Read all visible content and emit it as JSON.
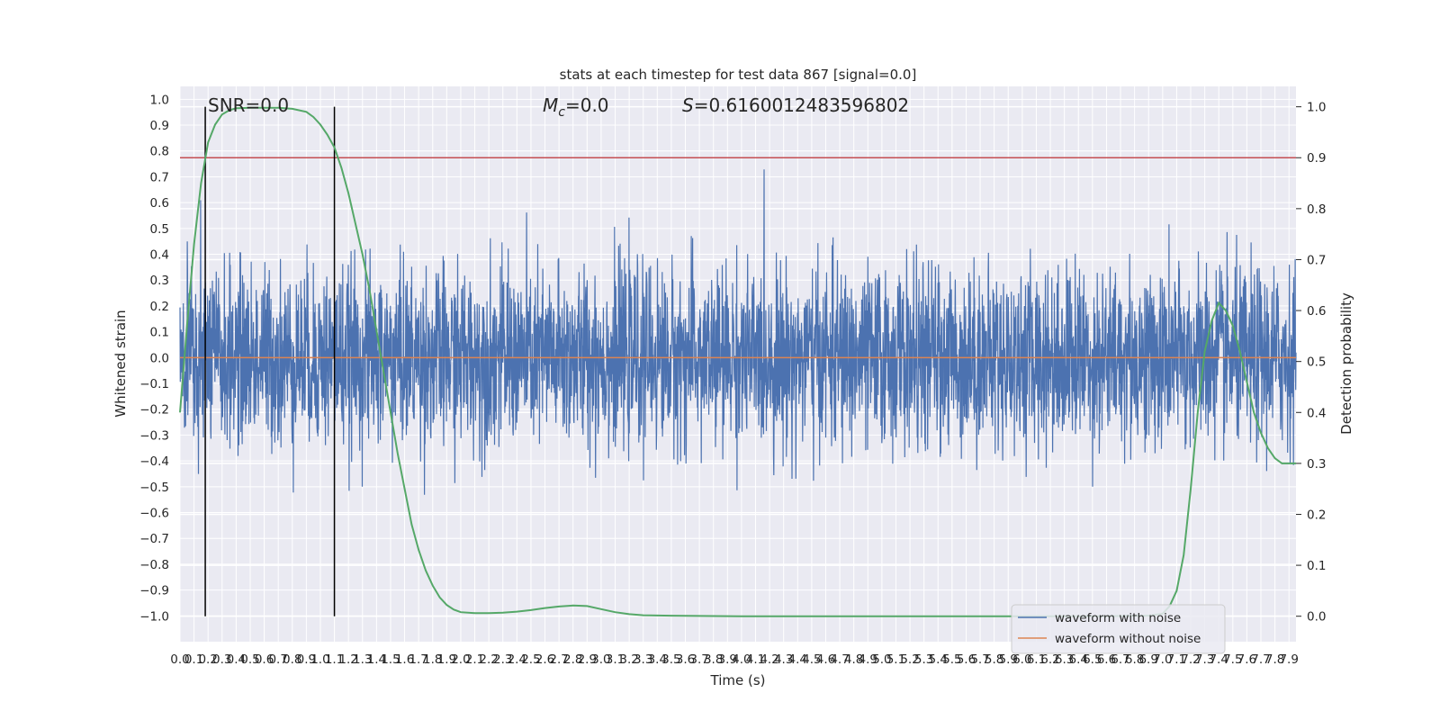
{
  "chart_data": {
    "type": "line",
    "title": "stats at each timestep for test data 867 [signal=0.0]",
    "xlabel": "Time (s)",
    "ylabel": "Whitened strain",
    "y2label": "Detection probability",
    "xlim": [
      0.0,
      7.95
    ],
    "ylim": [
      -1.1,
      1.05
    ],
    "y2lim": [
      -0.05,
      1.04
    ],
    "x_ticks": [
      "0.0",
      "0.1",
      "0.2",
      "0.3",
      "0.4",
      "0.5",
      "0.6",
      "0.7",
      "0.8",
      "0.9",
      "1.0",
      "1.1",
      "1.2",
      "1.3",
      "1.4",
      "1.5",
      "1.6",
      "1.7",
      "1.8",
      "1.9",
      "2.0",
      "2.1",
      "2.2",
      "2.3",
      "2.4",
      "2.5",
      "2.6",
      "2.7",
      "2.8",
      "2.9",
      "3.0",
      "3.1",
      "3.2",
      "3.3",
      "3.4",
      "3.5",
      "3.6",
      "3.7",
      "3.8",
      "3.9",
      "4.0",
      "4.1",
      "4.2",
      "4.3",
      "4.4",
      "4.5",
      "4.6",
      "4.7",
      "4.8",
      "4.9",
      "5.0",
      "5.1",
      "5.2",
      "5.3",
      "5.4",
      "5.5",
      "5.6",
      "5.7",
      "5.8",
      "5.9",
      "6.0",
      "6.1",
      "6.2",
      "6.3",
      "6.4",
      "6.5",
      "6.6",
      "6.7",
      "6.8",
      "6.9",
      "7.0",
      "7.1",
      "7.2",
      "7.3",
      "7.4",
      "7.5",
      "7.6",
      "7.7",
      "7.8",
      "7.9"
    ],
    "y_ticks": [
      "1.0",
      "0.9",
      "0.8",
      "0.7",
      "0.6",
      "0.5",
      "0.4",
      "0.3",
      "0.2",
      "0.1",
      "0.0",
      "−0.1",
      "−0.2",
      "−0.3",
      "−0.4",
      "−0.5",
      "−0.6",
      "−0.7",
      "−0.8",
      "−0.9",
      "−1.0"
    ],
    "y2_ticks": [
      "1.0",
      "0.9",
      "0.8",
      "0.7",
      "0.6",
      "0.5",
      "0.4",
      "0.3",
      "0.2",
      "0.1",
      "0.0"
    ],
    "annotations": {
      "snr": "SNR=0.0",
      "mc": "=0.0",
      "s": "=0.6160012483596802"
    },
    "threshold": 0.9,
    "vlines_x": [
      0.18,
      1.1
    ],
    "series": [
      {
        "name": "waveform with noise",
        "color": "#4c72b0",
        "noise_sigma": 0.17
      },
      {
        "name": "waveform without noise",
        "color": "#dd8452",
        "values": [
          [
            0.0,
            0.0
          ],
          [
            7.95,
            0.0
          ]
        ]
      },
      {
        "color": "#55a868",
        "axis": "right",
        "values": [
          [
            0.0,
            0.4
          ],
          [
            0.05,
            0.57
          ],
          [
            0.1,
            0.73
          ],
          [
            0.15,
            0.85
          ],
          [
            0.2,
            0.93
          ],
          [
            0.25,
            0.965
          ],
          [
            0.3,
            0.985
          ],
          [
            0.35,
            0.993
          ],
          [
            0.4,
            0.997
          ],
          [
            0.5,
            0.998
          ],
          [
            0.6,
            0.998
          ],
          [
            0.7,
            0.998
          ],
          [
            0.8,
            0.996
          ],
          [
            0.9,
            0.99
          ],
          [
            0.95,
            0.98
          ],
          [
            1.0,
            0.965
          ],
          [
            1.05,
            0.945
          ],
          [
            1.1,
            0.92
          ],
          [
            1.15,
            0.88
          ],
          [
            1.2,
            0.83
          ],
          [
            1.25,
            0.77
          ],
          [
            1.3,
            0.71
          ],
          [
            1.35,
            0.64
          ],
          [
            1.4,
            0.56
          ],
          [
            1.45,
            0.48
          ],
          [
            1.5,
            0.4
          ],
          [
            1.55,
            0.32
          ],
          [
            1.6,
            0.25
          ],
          [
            1.65,
            0.18
          ],
          [
            1.7,
            0.13
          ],
          [
            1.75,
            0.09
          ],
          [
            1.8,
            0.06
          ],
          [
            1.85,
            0.037
          ],
          [
            1.9,
            0.022
          ],
          [
            1.95,
            0.013
          ],
          [
            2.0,
            0.008
          ],
          [
            2.1,
            0.006
          ],
          [
            2.2,
            0.006
          ],
          [
            2.3,
            0.007
          ],
          [
            2.4,
            0.009
          ],
          [
            2.5,
            0.012
          ],
          [
            2.6,
            0.016
          ],
          [
            2.7,
            0.019
          ],
          [
            2.8,
            0.021
          ],
          [
            2.9,
            0.02
          ],
          [
            3.0,
            0.014
          ],
          [
            3.1,
            0.008
          ],
          [
            3.2,
            0.004
          ],
          [
            3.3,
            0.002
          ],
          [
            3.5,
            0.001
          ],
          [
            4.0,
            0.0
          ],
          [
            5.0,
            0.0
          ],
          [
            6.0,
            0.0
          ],
          [
            6.5,
            0.0
          ],
          [
            6.9,
            0.001
          ],
          [
            7.0,
            0.005
          ],
          [
            7.05,
            0.02
          ],
          [
            7.1,
            0.05
          ],
          [
            7.15,
            0.12
          ],
          [
            7.2,
            0.25
          ],
          [
            7.25,
            0.4
          ],
          [
            7.3,
            0.52
          ],
          [
            7.35,
            0.58
          ],
          [
            7.4,
            0.615
          ],
          [
            7.45,
            0.6
          ],
          [
            7.5,
            0.57
          ],
          [
            7.55,
            0.52
          ],
          [
            7.6,
            0.46
          ],
          [
            7.65,
            0.4
          ],
          [
            7.7,
            0.36
          ],
          [
            7.75,
            0.33
          ],
          [
            7.8,
            0.31
          ],
          [
            7.85,
            0.3
          ],
          [
            7.9,
            0.3
          ],
          [
            7.95,
            0.3
          ]
        ]
      }
    ],
    "legend_position": "lower-right",
    "grid": true
  }
}
